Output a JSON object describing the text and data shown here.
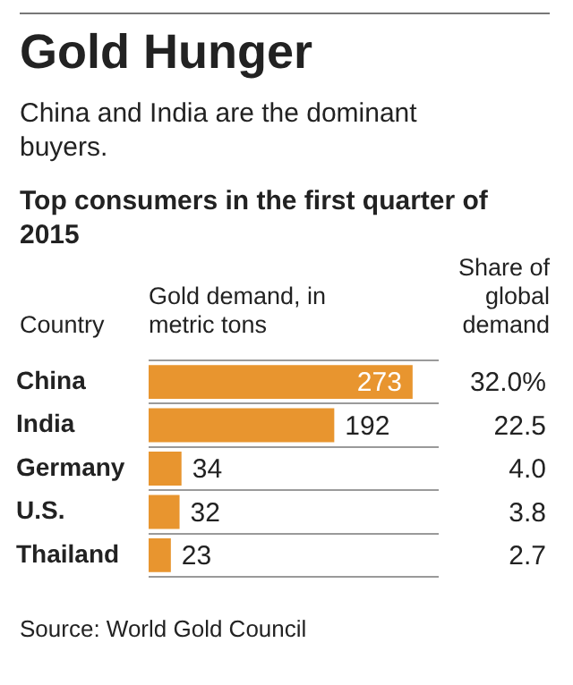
{
  "chart_data": {
    "type": "bar",
    "orientation": "horizontal",
    "title": "Gold Hunger",
    "subtitle": "China and India are the dominant buyers.",
    "xlabel": "Gold demand, in metric tons",
    "ylabel": "Country",
    "categories": [
      "China",
      "India",
      "Germany",
      "U.S.",
      "Thailand"
    ],
    "values": [
      273,
      192,
      34,
      32,
      23
    ],
    "color": "#e8952f",
    "data_labels": true,
    "grid": "y",
    "tick_labels": "y",
    "legend": false,
    "annotations": [
      "Top consumers in the first quarter of 2015",
      "Share of global demand",
      "32.0%",
      "22.5",
      "4.0",
      "3.8",
      "2.7",
      "Source: World Gold Council"
    ]
  }
}
